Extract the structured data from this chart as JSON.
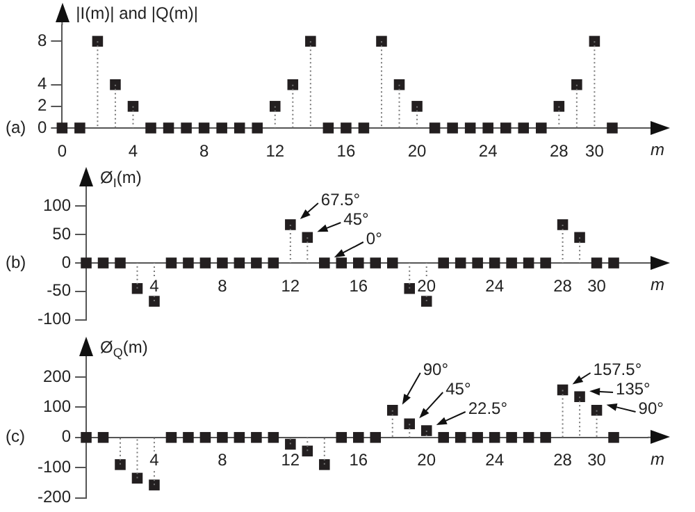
{
  "chart_data": [
    {
      "type": "lollipop",
      "ylabel": "|I(m)| and |Q(m)|",
      "xlabel": "m",
      "color": "#231f20",
      "marker": "square",
      "line_style": "dotted",
      "x": [
        0,
        1,
        2,
        3,
        4,
        5,
        6,
        7,
        8,
        9,
        10,
        11,
        12,
        13,
        14,
        15,
        16,
        17,
        18,
        19,
        20,
        21,
        22,
        23,
        24,
        25,
        26,
        27,
        28,
        29,
        30,
        31
      ],
      "values": [
        0,
        0,
        8,
        4,
        2,
        0,
        0,
        0,
        0,
        0,
        0,
        0,
        2,
        4,
        8,
        0,
        0,
        0,
        8,
        4,
        2,
        0,
        0,
        0,
        0,
        0,
        0,
        0,
        2,
        4,
        8,
        0
      ],
      "xlim": [
        0,
        33
      ],
      "xticks": [
        0,
        4,
        8,
        12,
        16,
        20,
        24,
        28,
        30
      ],
      "ylim": [
        0,
        9.5
      ],
      "yticks": [
        0,
        2,
        4,
        8
      ],
      "annotations": [
        "(a)"
      ]
    },
    {
      "type": "lollipop",
      "ylabel": "Ø$_{I}$(m)",
      "xlabel": "m",
      "color": "#231f20",
      "marker": "square",
      "line_style": "dotted",
      "x": [
        0,
        1,
        2,
        3,
        4,
        5,
        6,
        7,
        8,
        9,
        10,
        11,
        12,
        13,
        14,
        15,
        16,
        17,
        18,
        19,
        20,
        21,
        22,
        23,
        24,
        25,
        26,
        27,
        28,
        29,
        30,
        31
      ],
      "values": [
        0,
        0,
        0,
        -45,
        -67.5,
        0,
        0,
        0,
        0,
        0,
        0,
        0,
        67.5,
        45,
        0,
        0,
        0,
        0,
        0,
        -45,
        -67.5,
        0,
        0,
        0,
        0,
        0,
        0,
        0,
        67.5,
        45,
        0,
        0
      ],
      "xlim": [
        0,
        33
      ],
      "xticks": [
        4,
        8,
        12,
        16,
        20,
        24,
        28,
        30
      ],
      "ylim": [
        -100,
        130
      ],
      "yticks": [
        -100,
        -50,
        0,
        50,
        100
      ],
      "annotations": [
        "(b)",
        {
          "text": "67.5°",
          "x": 12,
          "y": 67.5
        },
        {
          "text": "45°",
          "x": 13,
          "y": 45
        },
        {
          "text": "0°",
          "x": 14,
          "y": 0
        }
      ]
    },
    {
      "type": "lollipop",
      "ylabel": "Ø$_{Q}$(m)",
      "xlabel": "m",
      "color": "#231f20",
      "marker": "square",
      "line_style": "dotted",
      "x": [
        0,
        1,
        2,
        3,
        4,
        5,
        6,
        7,
        8,
        9,
        10,
        11,
        12,
        13,
        14,
        15,
        16,
        17,
        18,
        19,
        20,
        21,
        22,
        23,
        24,
        25,
        26,
        27,
        28,
        29,
        30,
        31
      ],
      "values": [
        0,
        0,
        -90,
        -135,
        -157.5,
        0,
        0,
        0,
        0,
        0,
        0,
        0,
        -22.5,
        -45,
        -90,
        0,
        0,
        0,
        90,
        45,
        22.5,
        0,
        0,
        0,
        0,
        0,
        0,
        0,
        157.5,
        135,
        90,
        0
      ],
      "xlim": [
        0,
        33
      ],
      "xticks": [
        4,
        8,
        12,
        16,
        20,
        24,
        28,
        30
      ],
      "ylim": [
        -200,
        260
      ],
      "yticks": [
        -200,
        -100,
        0,
        100,
        200
      ],
      "annotations": [
        "(c)",
        {
          "text": "90°",
          "x": 18,
          "y": 90
        },
        {
          "text": "45°",
          "x": 19,
          "y": 45
        },
        {
          "text": "22.5°",
          "x": 20,
          "y": 22.5
        },
        {
          "text": "157.5°",
          "x": 28,
          "y": 157.5
        },
        {
          "text": "135°",
          "x": 29,
          "y": 135
        },
        {
          "text": "90°",
          "x": 30,
          "y": 90
        }
      ]
    }
  ]
}
